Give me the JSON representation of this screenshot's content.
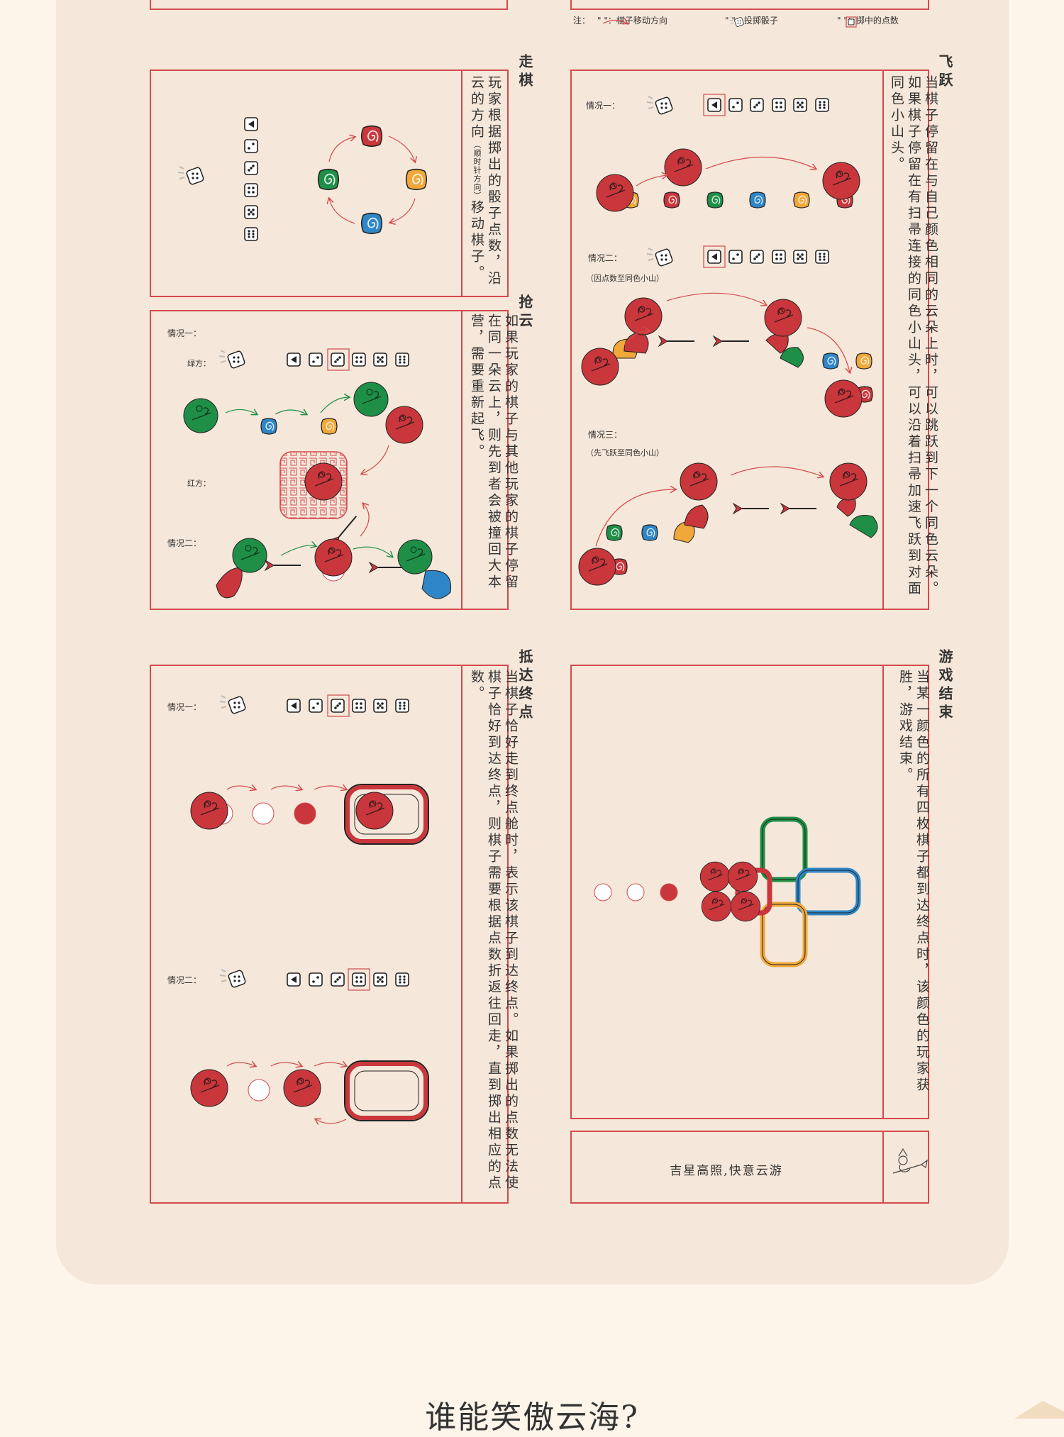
{
  "note": {
    "prefix": "注：",
    "move_label": "\"  \"：棋子移动方向",
    "dice_label": "\"  \"：投掷骰子",
    "points_label": "\"  \"：掷中的点数"
  },
  "sections": {
    "walk": {
      "title": "走棋",
      "text": "玩家根据掷出的骰子点数，沿云的方向",
      "small": "（顺时针方向）",
      "text2": "移动棋子。"
    },
    "grab": {
      "title": "抢云",
      "text": "如果玩家的棋子与其他玩家的棋子停留在同一朵云上，则先到者会被撞回大本营，需要重新起飞。",
      "case1": "情况一：",
      "green": "绿方：",
      "red": "红方：",
      "case2": "情况二："
    },
    "fly": {
      "title": "飞跃",
      "text": "当棋子停留在与自己颜色相同的云朵上时，可以跳跃到下一个同色云朵。 如果棋子停留在有扫帚连接的同色小山头，可以沿着扫帚加速飞跃到对面同色小山头。",
      "case1": "情况一：",
      "case2": "情况二：",
      "case2_sub": "（因点数至同色小山）",
      "case3": "情况三：",
      "case3_sub": "（先飞跃至同色小山）"
    },
    "finish": {
      "title": "抵达终点",
      "text": "当棋子恰好走到终点舱时，表示该棋子到达终点。如果掷出的点数无法使棋子恰好到达终点，则棋子需要根据点数折返往回走，直到掷出相应的点数。",
      "case1": "情况一：",
      "case2": "情况二："
    },
    "end": {
      "title": "游戏结束",
      "text": "当某一颜色的所有四枚棋子都到达终点时，该颜色的玩家获胜，游戏结束。",
      "slogan": "吉星高照,快意云游"
    }
  },
  "bottom_title": "谁能笑傲云海?",
  "colors": {
    "red": "#c9373c",
    "green": "#1f8f47",
    "blue": "#2f86c6",
    "yellow": "#f0a83a",
    "border": "#d34a4f"
  }
}
